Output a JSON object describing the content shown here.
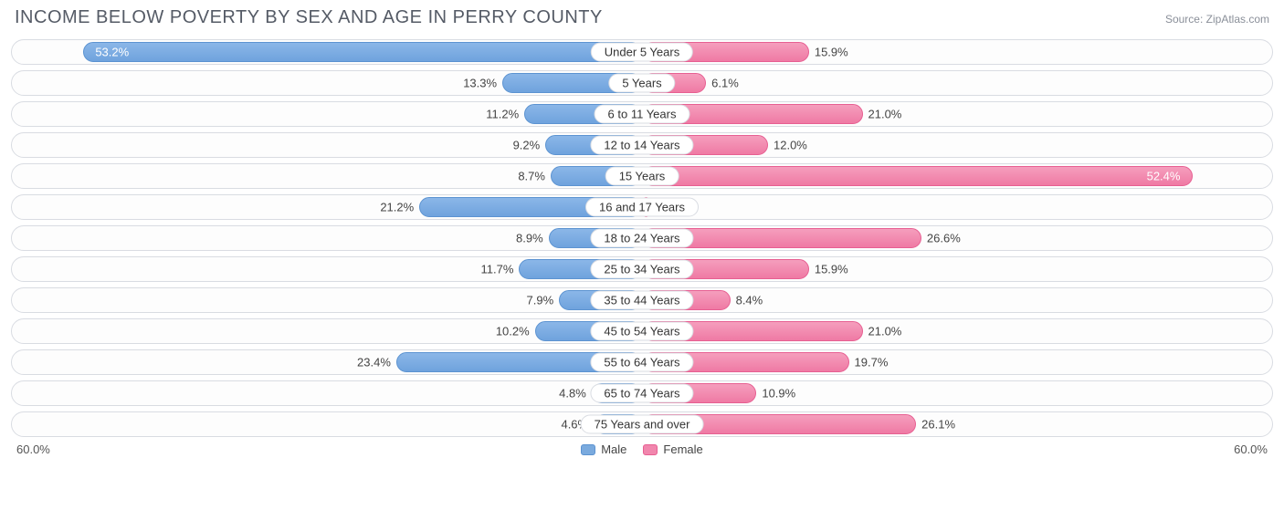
{
  "title": "INCOME BELOW POVERTY BY SEX AND AGE IN PERRY COUNTY",
  "source": "Source: ZipAtlas.com",
  "chart": {
    "type": "diverging-bar",
    "axis_max": 60.0,
    "axis_max_label": "60.0%",
    "male_color": "#7aaade",
    "male_border": "#5c93d1",
    "female_color": "#f186ad",
    "female_border": "#e75f92",
    "row_border": "#d9dce2",
    "background": "#ffffff",
    "label_fontsize": 13,
    "title_fontsize": 20,
    "title_color": "#555b66",
    "inside_threshold_pct": 80.0,
    "legend": {
      "male": "Male",
      "female": "Female"
    },
    "rows": [
      {
        "category": "Under 5 Years",
        "male": 53.2,
        "female": 15.9
      },
      {
        "category": "5 Years",
        "male": 13.3,
        "female": 6.1
      },
      {
        "category": "6 to 11 Years",
        "male": 11.2,
        "female": 21.0
      },
      {
        "category": "12 to 14 Years",
        "male": 9.2,
        "female": 12.0
      },
      {
        "category": "15 Years",
        "male": 8.7,
        "female": 52.4
      },
      {
        "category": "16 and 17 Years",
        "male": 21.2,
        "female": 0.8
      },
      {
        "category": "18 to 24 Years",
        "male": 8.9,
        "female": 26.6
      },
      {
        "category": "25 to 34 Years",
        "male": 11.7,
        "female": 15.9
      },
      {
        "category": "35 to 44 Years",
        "male": 7.9,
        "female": 8.4
      },
      {
        "category": "45 to 54 Years",
        "male": 10.2,
        "female": 21.0
      },
      {
        "category": "55 to 64 Years",
        "male": 23.4,
        "female": 19.7
      },
      {
        "category": "65 to 74 Years",
        "male": 4.8,
        "female": 10.9
      },
      {
        "category": "75 Years and over",
        "male": 4.6,
        "female": 26.1
      }
    ]
  }
}
